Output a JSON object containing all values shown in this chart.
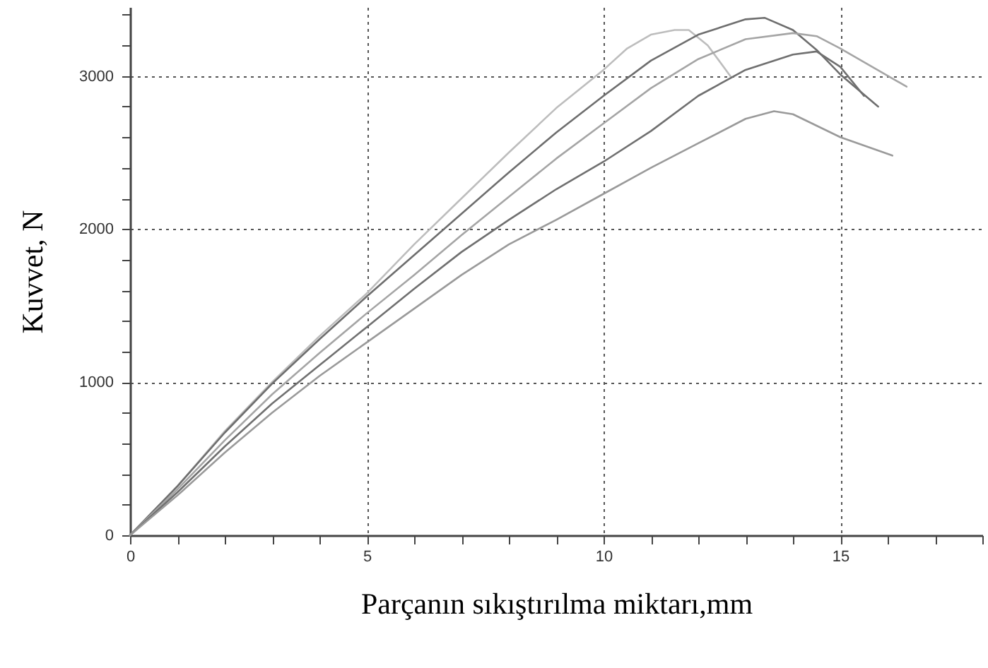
{
  "chart_data": {
    "type": "line",
    "xlabel": "Parçanın sıkıştırılma miktarı,mm",
    "ylabel": "Kuvvet, N",
    "xlim": [
      0,
      18
    ],
    "ylim": [
      0,
      3450
    ],
    "xticks": [
      0,
      {
        "value": 1,
        "label": null
      },
      {
        "value": 2,
        "label": null
      },
      {
        "value": 3,
        "label": null
      },
      {
        "value": 4,
        "label": null
      },
      5,
      {
        "value": 6,
        "label": null
      },
      {
        "value": 7,
        "label": null
      },
      {
        "value": 8,
        "label": null
      },
      {
        "value": 9,
        "label": null
      },
      10,
      {
        "value": 11,
        "label": null
      },
      {
        "value": 12,
        "label": null
      },
      {
        "value": 13,
        "label": null
      },
      {
        "value": 14,
        "label": null
      },
      15,
      {
        "value": 16,
        "label": null
      },
      {
        "value": 17,
        "label": null
      },
      {
        "value": 18,
        "label": null
      }
    ],
    "yticks": [
      0,
      {
        "value": 200,
        "label": null
      },
      {
        "value": 400,
        "label": null
      },
      {
        "value": 600,
        "label": null
      },
      {
        "value": 800,
        "label": null
      },
      1000,
      {
        "value": 1200,
        "label": null
      },
      {
        "value": 1400,
        "label": null
      },
      {
        "value": 1600,
        "label": null
      },
      {
        "value": 1800,
        "label": null
      },
      2000,
      {
        "value": 2200,
        "label": null
      },
      {
        "value": 2400,
        "label": null
      },
      {
        "value": 2600,
        "label": null
      },
      {
        "value": 2800,
        "label": null
      },
      3000,
      {
        "value": 3200,
        "label": null
      },
      {
        "value": 3400,
        "label": null
      }
    ],
    "grid": true,
    "line_style": "solid",
    "series": [
      {
        "color": "#bdbdbd",
        "x": [
          0,
          1,
          2,
          3,
          4,
          5,
          6,
          7,
          8,
          9,
          10,
          10.5,
          11,
          11.5,
          11.8,
          12.2,
          12.7
        ],
        "values": [
          0,
          320,
          680,
          1000,
          1300,
          1580,
          1900,
          2200,
          2500,
          2790,
          3040,
          3180,
          3270,
          3300,
          3300,
          3200,
          2990
        ]
      },
      {
        "color": "#6e6e6e",
        "x": [
          0,
          1,
          2,
          3,
          4,
          5,
          6,
          7,
          8,
          9,
          10,
          11,
          12,
          13,
          13.4,
          14,
          14.5,
          15,
          15.8
        ],
        "values": [
          0,
          320,
          670,
          990,
          1280,
          1560,
          1830,
          2100,
          2370,
          2630,
          2870,
          3100,
          3270,
          3370,
          3380,
          3300,
          3170,
          3010,
          2800
        ]
      },
      {
        "color": "#a5a5a5",
        "x": [
          0,
          1,
          2,
          3,
          4,
          5,
          6,
          7,
          8,
          9,
          10,
          11,
          12,
          13,
          14,
          14.5,
          15,
          16.4
        ],
        "values": [
          0,
          300,
          620,
          920,
          1190,
          1450,
          1700,
          1960,
          2210,
          2460,
          2690,
          2920,
          3110,
          3240,
          3280,
          3260,
          3180,
          2930
        ]
      },
      {
        "color": "#707070",
        "x": [
          0,
          1,
          2,
          3,
          4,
          5,
          6,
          7,
          8,
          9,
          10,
          11,
          12,
          13,
          14,
          14.5,
          15,
          15.5
        ],
        "values": [
          0,
          280,
          580,
          860,
          1110,
          1360,
          1610,
          1850,
          2060,
          2260,
          2440,
          2640,
          2870,
          3040,
          3140,
          3160,
          3060,
          2870
        ]
      },
      {
        "color": "#9a9a9a",
        "x": [
          0,
          1,
          2,
          3,
          4,
          5,
          6,
          7,
          8,
          9,
          10,
          11,
          12,
          13,
          13.6,
          14,
          15,
          16.1
        ],
        "values": [
          0,
          260,
          540,
          800,
          1040,
          1260,
          1480,
          1700,
          1900,
          2060,
          2230,
          2400,
          2560,
          2720,
          2770,
          2750,
          2600,
          2480
        ]
      }
    ]
  }
}
